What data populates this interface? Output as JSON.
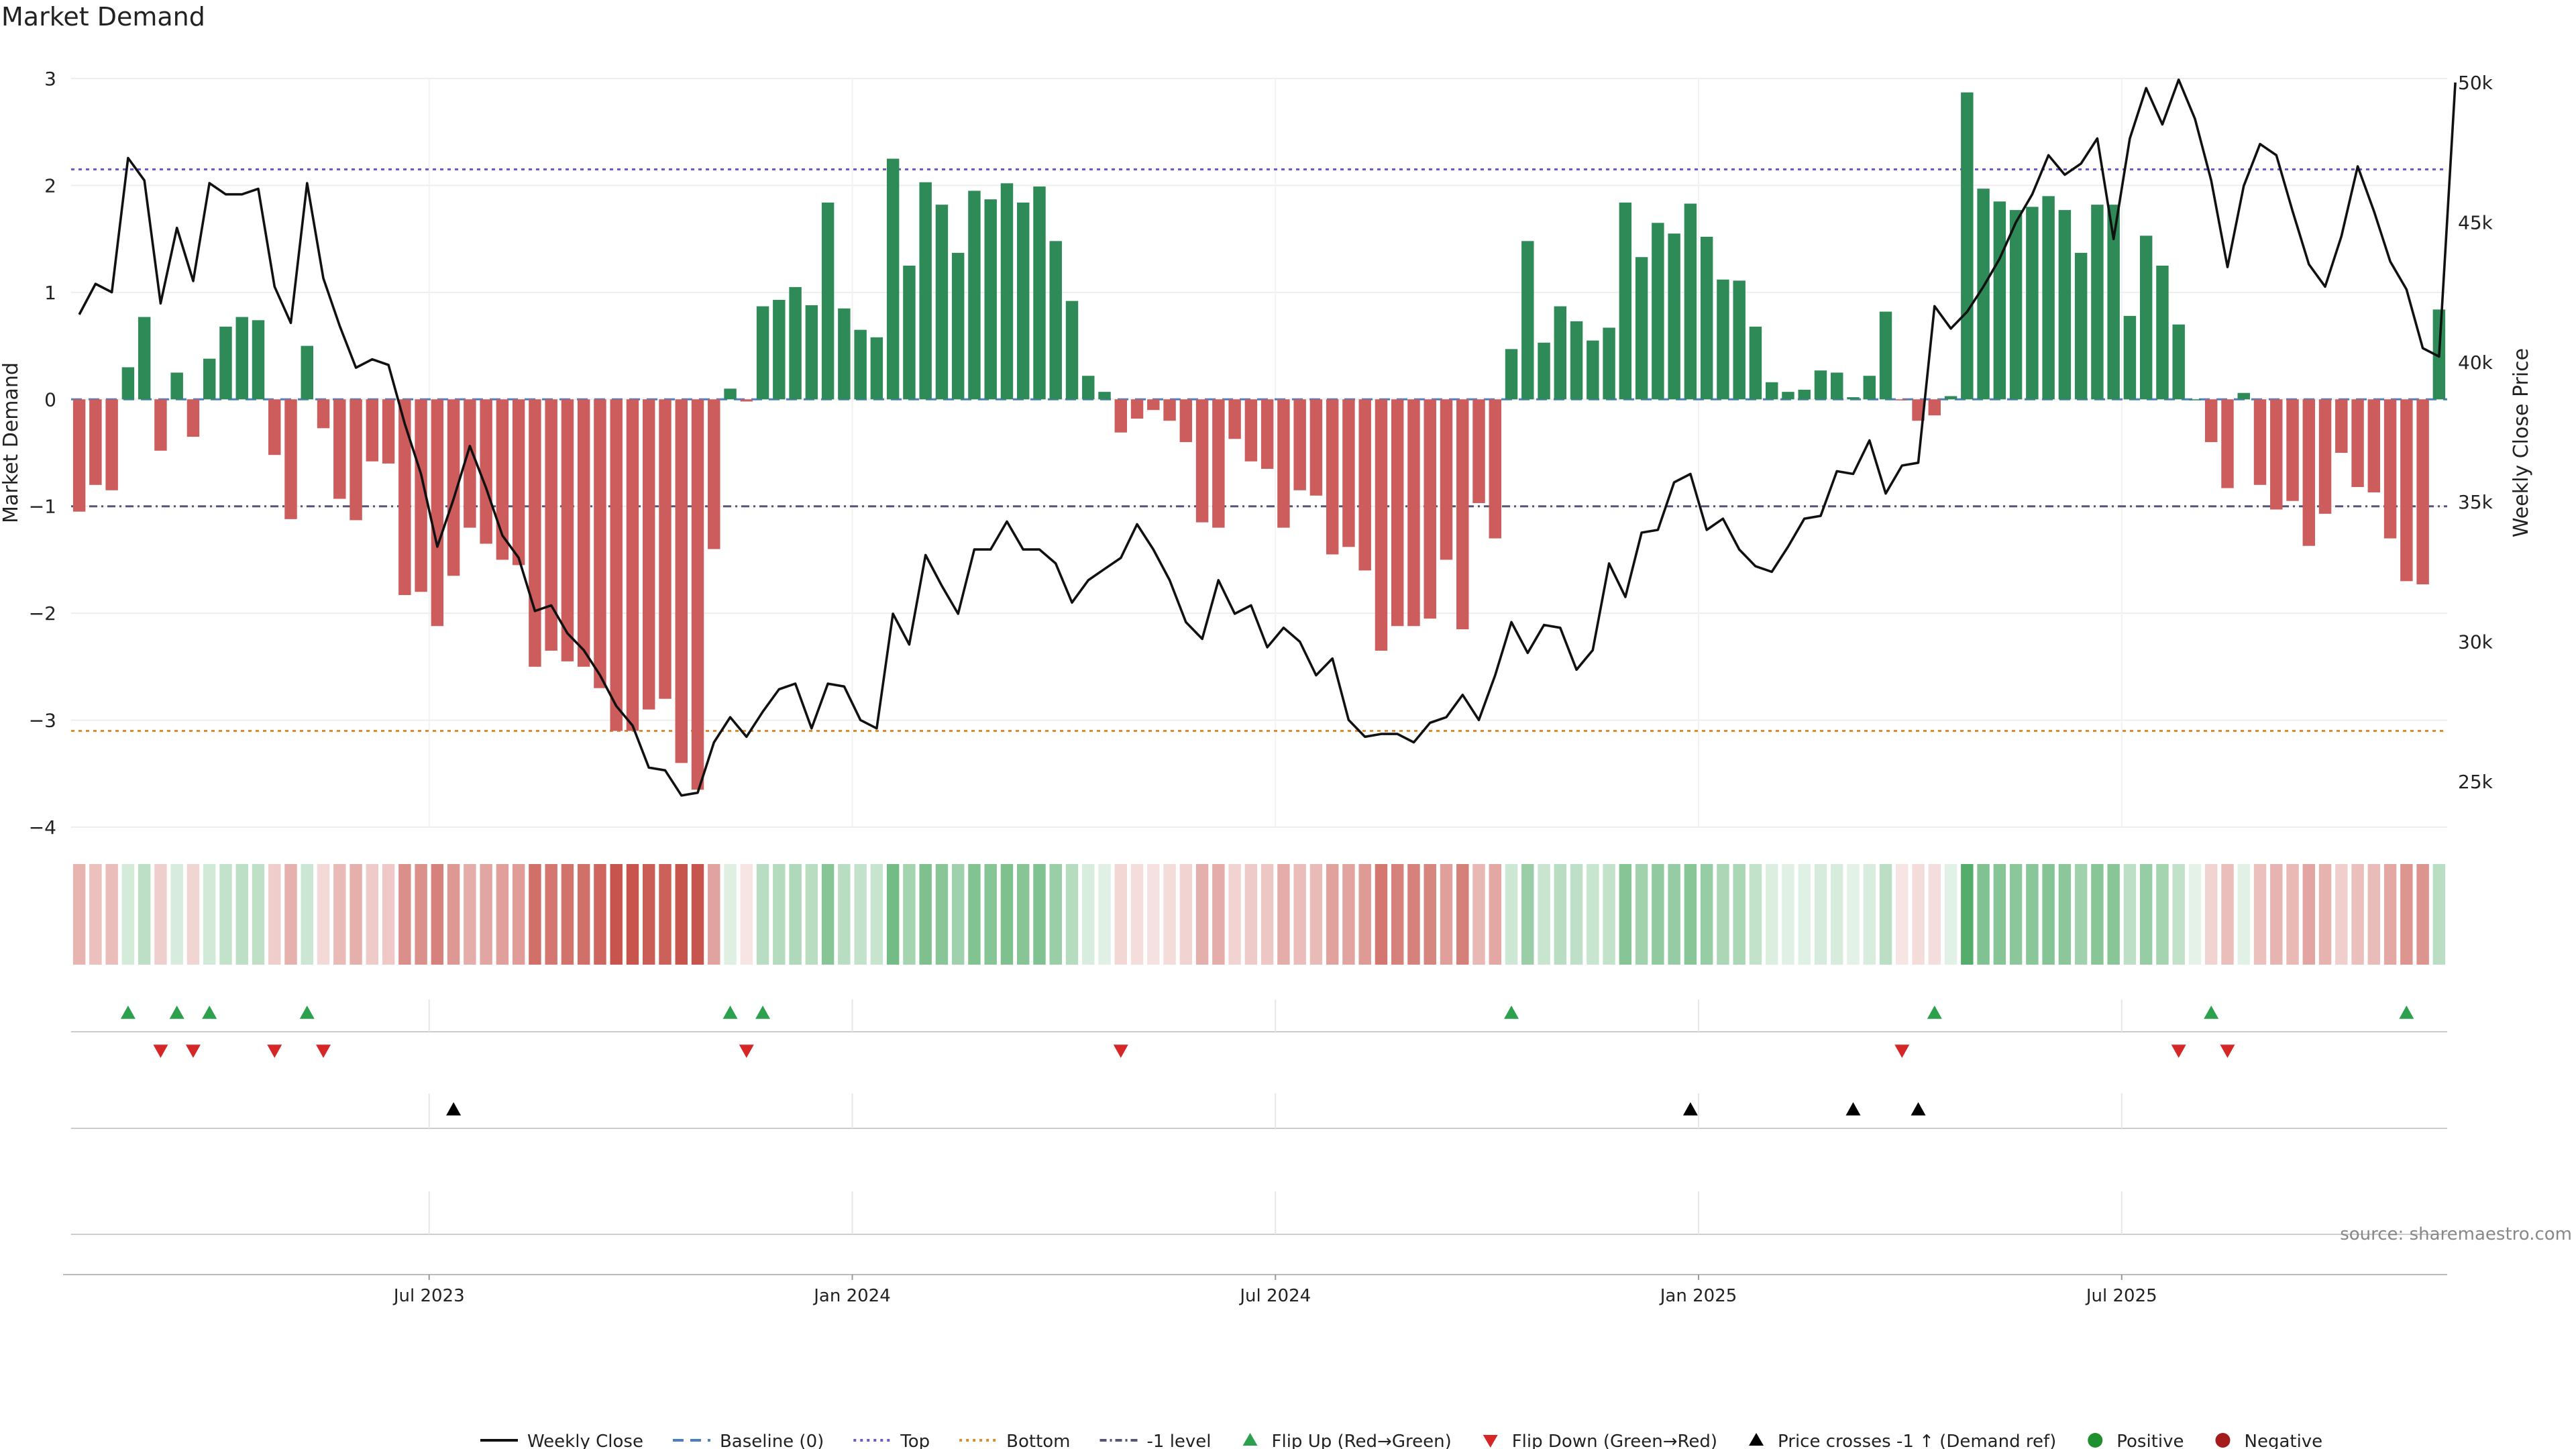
{
  "title": "Market Demand",
  "source": "source: sharemaestro.com",
  "colors": {
    "positive": "#2e8b57",
    "negative": "#cd5c5c",
    "price": "#111111",
    "baseline": "#4a7fc1",
    "top": "#6a5acd",
    "bottom": "#e08a2e",
    "minus_one": "#555577",
    "flip_up": "#2ca04c",
    "flip_down": "#d62728",
    "cross": "#000000",
    "pos_dot": "#1f8f2f",
    "neg_dot": "#a51c1c"
  },
  "chart_data": {
    "type": "bar",
    "title": "Market Demand",
    "ylabel": "Market Demand",
    "y2label": "Weekly Close Price",
    "ylim": [
      -4,
      3
    ],
    "y2lim": [
      22500,
      50500
    ],
    "yticks": [
      3,
      2,
      1,
      0,
      -1,
      -2,
      -3,
      -4
    ],
    "ytick_labels": [
      "3",
      "2",
      "1",
      "0",
      "−1",
      "−2",
      "−3",
      "−4"
    ],
    "y2ticks": [
      50000,
      45000,
      40000,
      35000,
      30000,
      25000
    ],
    "y2tick_labels": [
      "50k",
      "45k",
      "40k",
      "35k",
      "30k",
      "25k"
    ],
    "xticks": [
      {
        "label": "Jul 2023",
        "index": 22
      },
      {
        "label": "Jan 2024",
        "index": 48
      },
      {
        "label": "Jul 2024",
        "index": 74
      },
      {
        "label": "Jan 2025",
        "index": 100
      },
      {
        "label": "Jul 2025",
        "index": 126
      }
    ],
    "reference_lines": {
      "baseline": 0,
      "top": 2.15,
      "bottom": -3.1,
      "minus_one": -1.0
    },
    "series": [
      {
        "name": "Market Demand",
        "values": [
          -1.05,
          -0.8,
          -0.85,
          0.3,
          0.77,
          -0.48,
          0.25,
          -0.35,
          0.38,
          0.68,
          0.77,
          0.74,
          -0.52,
          -1.12,
          0.5,
          -0.27,
          -0.93,
          -1.13,
          -0.58,
          -0.6,
          -1.83,
          -1.8,
          -2.12,
          -1.65,
          -1.2,
          -1.35,
          -1.5,
          -1.55,
          -2.5,
          -2.35,
          -2.45,
          -2.5,
          -2.7,
          -3.1,
          -3.1,
          -2.9,
          -2.8,
          -3.4,
          -3.65,
          -1.4,
          0.1,
          -0.02,
          0.87,
          0.93,
          1.05,
          0.88,
          1.84,
          0.85,
          0.65,
          0.58,
          2.25,
          1.25,
          2.03,
          1.82,
          1.37,
          1.95,
          1.87,
          2.02,
          1.84,
          1.99,
          1.48,
          0.92,
          0.22,
          0.07,
          -0.31,
          -0.18,
          -0.1,
          -0.2,
          -0.4,
          -1.15,
          -1.2,
          -0.37,
          -0.58,
          -0.65,
          -1.2,
          -0.85,
          -0.9,
          -1.45,
          -1.38,
          -1.6,
          -2.35,
          -2.12,
          -2.12,
          -2.05,
          -1.5,
          -2.15,
          -0.97,
          -1.3,
          0.47,
          1.48,
          0.53,
          0.87,
          0.73,
          0.55,
          0.67,
          1.84,
          1.33,
          1.65,
          1.55,
          1.83,
          1.52,
          1.12,
          1.11,
          0.68,
          0.16,
          0.07,
          0.09,
          0.27,
          0.25,
          0.02,
          0.22,
          0.82,
          -0.01,
          -0.2,
          -0.15,
          0.03,
          2.87,
          1.97,
          1.85,
          1.77,
          1.8,
          1.9,
          1.77,
          1.37,
          1.82,
          1.82,
          0.78,
          1.53,
          1.25,
          0.7,
          0.0,
          -0.4,
          -0.83,
          0.06,
          -0.8,
          -1.03,
          -0.95,
          -1.37,
          -1.07,
          -0.5,
          -0.82,
          -0.87,
          -1.3,
          -1.7,
          -1.73,
          0.84
        ]
      },
      {
        "name": "Weekly Close",
        "values": [
          41700,
          42800,
          42500,
          47300,
          46500,
          42100,
          44800,
          42900,
          46400,
          46000,
          46000,
          46200,
          42700,
          41400,
          46400,
          43000,
          41300,
          39800,
          40100,
          39900,
          37800,
          36000,
          33400,
          35100,
          37000,
          35500,
          33800,
          33000,
          31100,
          31300,
          30300,
          29700,
          28800,
          27700,
          27000,
          25500,
          25400,
          24500,
          24600,
          26400,
          27300,
          26600,
          27500,
          28300,
          28500,
          26900,
          28500,
          28400,
          27200,
          26900,
          31000,
          29900,
          33100,
          32000,
          31000,
          33300,
          33300,
          34300,
          33300,
          33300,
          32800,
          31400,
          32200,
          32600,
          33000,
          34200,
          33300,
          32200,
          30700,
          30100,
          32200,
          31000,
          31300,
          29800,
          30500,
          30000,
          28800,
          29400,
          27200,
          26600,
          26700,
          26700,
          26400,
          27100,
          27300,
          28100,
          27200,
          28800,
          30700,
          29600,
          30600,
          30500,
          29000,
          29700,
          32800,
          31600,
          33900,
          34000,
          35700,
          36000,
          34000,
          34400,
          33300,
          32700,
          32500,
          33400,
          34400,
          34500,
          36100,
          36000,
          37200,
          35300,
          36300,
          36400,
          42000,
          41200,
          41800,
          42700,
          43700,
          45000,
          46000,
          47400,
          46700,
          47100,
          48000,
          44400,
          48000,
          49800,
          48500,
          50100,
          48700,
          46500,
          43400,
          46300,
          47800,
          47400,
          45400,
          43500,
          42700,
          44500,
          47000,
          45400,
          43600,
          42600,
          40500,
          40200,
          50000
        ]
      }
    ],
    "legend": {
      "placement": "bottom-center",
      "items": [
        {
          "label": "Weekly Close",
          "kind": "line",
          "color": "#111111"
        },
        {
          "label": "Baseline (0)",
          "kind": "dash",
          "color": "#4a7fc1"
        },
        {
          "label": "Top",
          "kind": "dot",
          "color": "#6a5acd"
        },
        {
          "label": "Bottom",
          "kind": "dot",
          "color": "#e08a2e"
        },
        {
          "label": "-1 level",
          "kind": "dash-dot",
          "color": "#555577"
        },
        {
          "label": "Flip Up (Red→Green)",
          "kind": "tri-up",
          "color": "#2ca04c"
        },
        {
          "label": "Flip Down (Green→Red)",
          "kind": "tri-down",
          "color": "#d62728"
        },
        {
          "label": "Price crosses -1 ↑ (Demand ref)",
          "kind": "tri-up",
          "color": "#000000"
        },
        {
          "label": "Positive",
          "kind": "circle",
          "color": "#1f8f2f"
        },
        {
          "label": "Negative",
          "kind": "circle",
          "color": "#a51c1c"
        }
      ]
    },
    "flip_up_weeks": [
      3,
      6,
      8,
      14,
      40,
      42,
      88,
      114,
      131,
      143
    ],
    "flip_down_weeks": [
      5,
      7,
      12,
      15,
      41,
      64,
      112,
      129,
      132
    ],
    "price_cross_weeks": [
      23,
      99,
      109,
      113
    ]
  }
}
